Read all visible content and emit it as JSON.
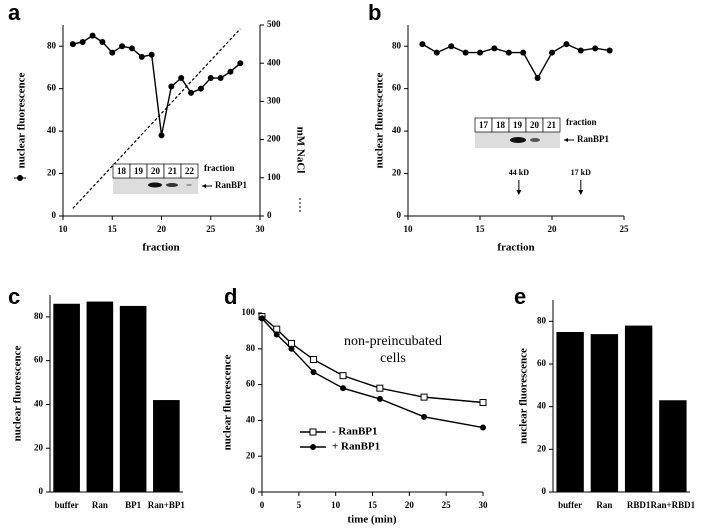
{
  "chart_data": [
    {
      "type": "line",
      "label": "a",
      "xlabel": "fraction",
      "ylabel": "nuclear fluorescence",
      "y2label": "mM NaCl",
      "xlim": [
        10,
        30
      ],
      "xticks": [
        10,
        15,
        20,
        25,
        30
      ],
      "ylim": [
        0,
        90
      ],
      "yticks": [
        0,
        20,
        40,
        60,
        80
      ],
      "y2lim": [
        0,
        500
      ],
      "y2ticks": [
        0,
        100,
        200,
        300,
        400,
        500
      ],
      "series": [
        {
          "color": "#000000",
          "marker": "circle",
          "x": [
            11,
            12,
            13,
            14,
            15,
            16,
            17,
            18,
            19,
            20,
            21,
            22,
            23,
            24,
            25,
            26,
            27,
            28
          ],
          "values": [
            81,
            82,
            85,
            82,
            77,
            80,
            79,
            75,
            76,
            38,
            61,
            65,
            58,
            60,
            65,
            65,
            68,
            72
          ]
        },
        {
          "color": "#000000",
          "marker": "none",
          "dash": true,
          "axis": "y2",
          "x": [
            11,
            28
          ],
          "values": [
            20,
            490
          ]
        }
      ],
      "inset": {
        "title": "fraction",
        "lanes": [
          18,
          19,
          20,
          21,
          22
        ],
        "band_label": "RanBP1"
      }
    },
    {
      "type": "line",
      "label": "b",
      "xlabel": "fraction",
      "ylabel": "nuclear fluorescence",
      "xlim": [
        10,
        25
      ],
      "xticks": [
        10,
        15,
        20,
        25
      ],
      "ylim": [
        0,
        90
      ],
      "yticks": [
        0,
        20,
        40,
        60,
        80
      ],
      "series": [
        {
          "color": "#000000",
          "marker": "circle",
          "x": [
            11,
            12,
            13,
            14,
            15,
            16,
            17,
            18,
            19,
            20,
            21,
            22,
            23,
            24
          ],
          "values": [
            81,
            77,
            80,
            77,
            77,
            79,
            77,
            77,
            65,
            77,
            81,
            78,
            79,
            78
          ]
        }
      ],
      "inset": {
        "title": "fraction",
        "lanes": [
          17,
          18,
          19,
          20,
          21
        ],
        "band_label": "RanBP1"
      },
      "markers": [
        {
          "label": "44 kD",
          "x": 17.7
        },
        {
          "label": "17 kD",
          "x": 22
        }
      ]
    },
    {
      "type": "bar",
      "label": "c",
      "ylabel": "nuclear fluorescence",
      "color": "#000000",
      "categories": [
        "buffer",
        "Ran",
        "BP1",
        "Ran+BP1"
      ],
      "values": [
        86,
        87,
        85,
        42
      ],
      "ylim": [
        0,
        90
      ],
      "yticks": [
        0,
        20,
        40,
        60,
        80
      ]
    },
    {
      "type": "line",
      "label": "d",
      "xlabel": "time (min)",
      "ylabel": "nuclear fluorescence",
      "xlim": [
        0,
        30
      ],
      "xticks": [
        0,
        5,
        10,
        15,
        20,
        25,
        30
      ],
      "ylim": [
        0,
        100
      ],
      "yticks": [
        0,
        20,
        40,
        60,
        80,
        100
      ],
      "annotation": [
        "non-preincubated",
        "cells"
      ],
      "legend": "lower left",
      "series": [
        {
          "name": "- RanBP1",
          "color": "#000000",
          "marker": "square",
          "x": [
            0,
            2,
            4,
            7,
            11,
            16,
            22,
            30
          ],
          "values": [
            98,
            91,
            83,
            74,
            65,
            58,
            53,
            50
          ]
        },
        {
          "name": "+ RanBP1",
          "color": "#000000",
          "marker": "circle",
          "x": [
            0,
            2,
            4,
            7,
            11,
            16,
            22,
            30
          ],
          "values": [
            97,
            88,
            80,
            67,
            58,
            52,
            42,
            36
          ]
        }
      ]
    },
    {
      "type": "bar",
      "label": "e",
      "ylabel": "nuclear fluorescence",
      "color": "#000000",
      "categories": [
        "buffer",
        "Ran",
        "RBD1",
        "Ran+RBD1"
      ],
      "values": [
        75,
        74,
        78,
        43
      ],
      "ylim": [
        0,
        90
      ],
      "yticks": [
        0,
        20,
        40,
        60,
        80
      ]
    }
  ]
}
